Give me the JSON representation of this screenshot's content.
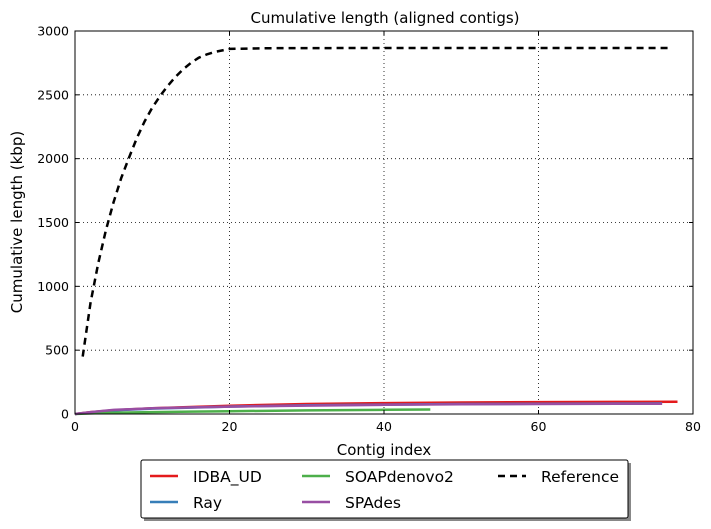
{
  "chart_data": {
    "type": "line",
    "title": "Cumulative length (aligned contigs)",
    "xlabel": "Contig index",
    "ylabel": "Cumulative length (kbp)",
    "xlim": [
      0,
      80
    ],
    "ylim": [
      0,
      3000
    ],
    "xticks": [
      0,
      20,
      40,
      60,
      80
    ],
    "yticks": [
      0,
      500,
      1000,
      1500,
      2000,
      2500,
      3000
    ],
    "grid": true,
    "legend_position": "bottom-center, below plot",
    "series": [
      {
        "name": "IDBA_UD",
        "color": "#e41a1c",
        "dash": "solid",
        "x": [
          0,
          2,
          5,
          10,
          15,
          20,
          30,
          40,
          50,
          60,
          70,
          78
        ],
        "y": [
          0,
          15,
          30,
          45,
          55,
          65,
          78,
          85,
          90,
          93,
          95,
          96
        ]
      },
      {
        "name": "Ray",
        "color": "#377eb8",
        "dash": "solid",
        "x": [
          0,
          2,
          5,
          10,
          15,
          20,
          30,
          40,
          50,
          60,
          70,
          76
        ],
        "y": [
          0,
          12,
          28,
          42,
          50,
          58,
          68,
          74,
          78,
          80,
          82,
          83
        ]
      },
      {
        "name": "SOAPdenovo2",
        "color": "#4daf4a",
        "dash": "solid",
        "x": [
          0,
          2,
          5,
          10,
          15,
          20,
          30,
          40,
          46
        ],
        "y": [
          0,
          5,
          10,
          15,
          19,
          22,
          28,
          33,
          35
        ]
      },
      {
        "name": "SPAdes",
        "color": "#984ea3",
        "dash": "solid",
        "x": [
          0,
          2,
          5,
          10,
          15,
          20,
          30,
          40,
          50,
          60,
          70,
          76
        ],
        "y": [
          0,
          15,
          32,
          45,
          52,
          58,
          66,
          72,
          76,
          78,
          80,
          81
        ]
      },
      {
        "name": "Reference",
        "color": "#000000",
        "dash": "dashed",
        "x": [
          1,
          2,
          3,
          4,
          5,
          6,
          7,
          8,
          9,
          10,
          11,
          12,
          13,
          14,
          15,
          16,
          17,
          18,
          20,
          25,
          30,
          40,
          50,
          60,
          70,
          77
        ],
        "y": [
          450,
          870,
          1180,
          1440,
          1660,
          1850,
          2010,
          2160,
          2290,
          2400,
          2490,
          2570,
          2640,
          2700,
          2750,
          2790,
          2815,
          2835,
          2860,
          2865,
          2866,
          2867,
          2867,
          2867,
          2867,
          2867
        ]
      }
    ]
  }
}
